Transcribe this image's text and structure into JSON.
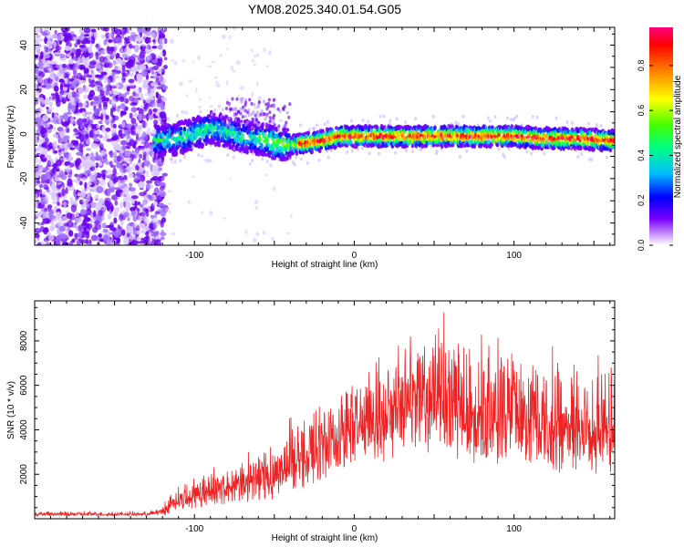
{
  "title": "YM08.2025.340.01.54.G05",
  "colors": {
    "snr_line": "#ee2222",
    "scatter_main": "#6a00ee",
    "axis": "#000000"
  },
  "chart_data": [
    {
      "type": "heatmap",
      "name": "spectrogram",
      "xlabel": "Height of straight line (km)",
      "ylabel": "Frequency (Hz)",
      "xlim": [
        -200,
        163
      ],
      "ylim": [
        -50,
        48
      ],
      "xticks": [
        -100,
        0,
        100
      ],
      "xtick_labels": [
        "-100",
        "0",
        "100"
      ],
      "yticks": [
        40,
        20,
        0,
        -20,
        -40
      ],
      "ytick_labels": [
        "40",
        "20",
        "0",
        "-20",
        "-40"
      ],
      "ridge": {
        "x": [
          -125,
          -110,
          -100,
          -90,
          -80,
          -70,
          -60,
          -50,
          -40,
          -30,
          -20,
          -10,
          0,
          20,
          40,
          60,
          80,
          100,
          120,
          140,
          163
        ],
        "y": [
          -3,
          -2,
          0,
          3,
          1,
          -1,
          -2,
          -4,
          -5,
          -4,
          -3,
          -1,
          -1,
          -1,
          -1,
          -1,
          -1,
          -1,
          -2,
          -2,
          -3
        ]
      },
      "noise_region_x": [
        -200,
        -118
      ],
      "colorbar": {
        "label": "Normalized spectral amplitude",
        "range": [
          0,
          0.97
        ],
        "ticks": [
          0.0,
          0.2,
          0.4,
          0.6,
          0.8
        ],
        "tick_labels": [
          "0.0",
          "0.2",
          "0.4",
          "0.6",
          "0.8"
        ]
      }
    },
    {
      "type": "line",
      "name": "snr",
      "xlabel": "Height of straight line (km)",
      "ylabel": "SNR (10 * v/v)",
      "xlim": [
        -200,
        163
      ],
      "ylim": [
        0,
        9800
      ],
      "xticks": [
        -100,
        0,
        100
      ],
      "xtick_labels": [
        "-100",
        "0",
        "100"
      ],
      "yticks": [
        2000,
        4000,
        6000,
        8000
      ],
      "ytick_labels": [
        "2000",
        "4000",
        "6000",
        "8000"
      ],
      "envelope": {
        "x": [
          -200,
          -130,
          -120,
          -110,
          -100,
          -90,
          -80,
          -70,
          -60,
          -50,
          -40,
          -30,
          -20,
          -10,
          0,
          10,
          20,
          30,
          40,
          50,
          60,
          70,
          80,
          90,
          100,
          110,
          120,
          130,
          140,
          150,
          163
        ],
        "base": [
          150,
          150,
          200,
          500,
          700,
          800,
          900,
          1000,
          1100,
          1300,
          1600,
          1900,
          2200,
          2500,
          2700,
          3000,
          3300,
          3600,
          3900,
          3800,
          3500,
          3300,
          3100,
          3000,
          3000,
          3000,
          2900,
          2800,
          2800,
          2700,
          2600
        ],
        "spread": [
          150,
          150,
          300,
          900,
          1100,
          1200,
          1300,
          1500,
          1800,
          2000,
          2300,
          2500,
          2800,
          3000,
          3200,
          3300,
          3500,
          3700,
          4200,
          4300,
          4300,
          4200,
          4200,
          4100,
          4100,
          4000,
          4000,
          4000,
          4000,
          3800,
          3600
        ]
      }
    }
  ]
}
